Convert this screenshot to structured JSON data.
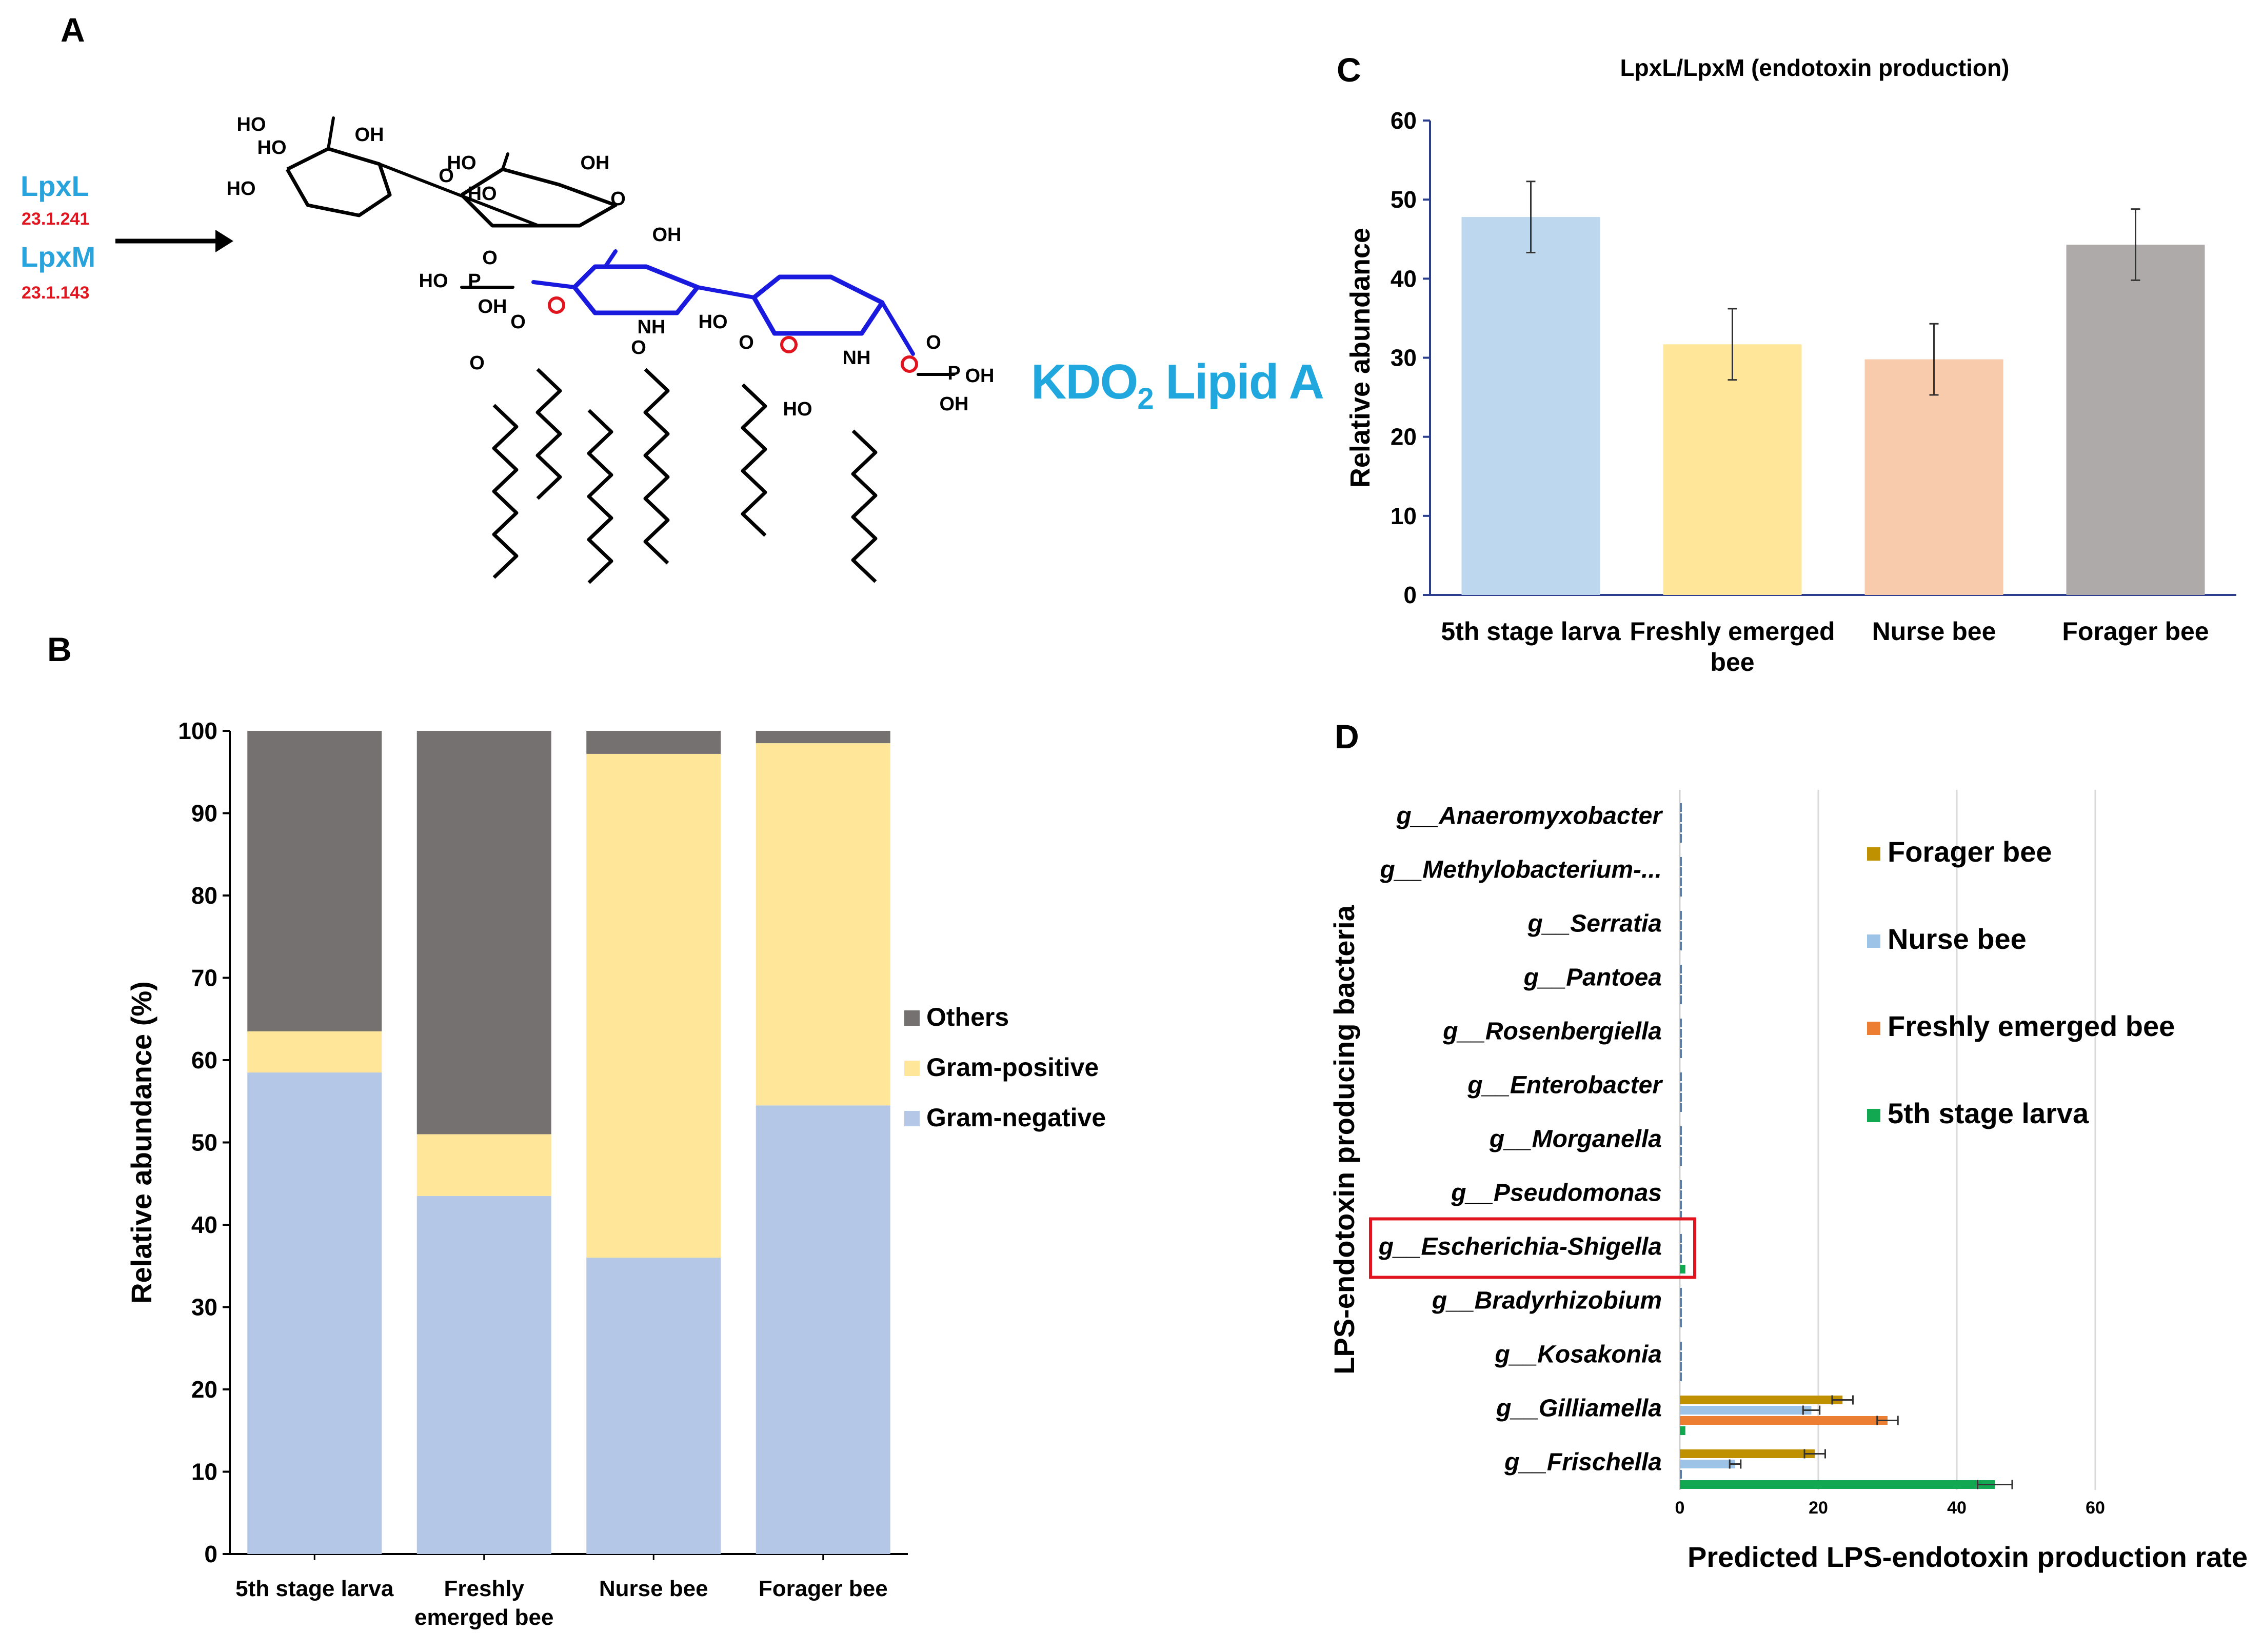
{
  "panels": {
    "a": {
      "letter": "A"
    },
    "b": {
      "letter": "B"
    },
    "c": {
      "letter": "C"
    },
    "d": {
      "letter": "D"
    }
  },
  "panel_a": {
    "enzymes": [
      {
        "name": "LpxL",
        "ec": "23.1.241"
      },
      {
        "name": "LpxM",
        "ec": "23.1.143"
      }
    ],
    "molecule_label": "KDO",
    "molecule_subscript": "2",
    "molecule_suffix": " Lipid A",
    "atom_labels": [
      "HO",
      "OH",
      "HO",
      "HO",
      "HO",
      "OH",
      "HO",
      "O",
      "O",
      "OH",
      "HO",
      "P",
      "O",
      "OH",
      "O",
      "O",
      "NH",
      "O",
      "HO",
      "O",
      "NH",
      "O",
      "P",
      "OH",
      "OH",
      "HO"
    ],
    "colors": {
      "enzyme": "#29a3dc",
      "ec": "#e0151f",
      "backbone": "#1a1adf",
      "oxygen": "#e0151f",
      "molecule_label": "#20a8de"
    }
  },
  "chart_data": [
    {
      "id": "B",
      "type": "bar",
      "stacked": true,
      "categories": [
        "5th stage larva",
        "Freshly emerged bee",
        "Nurse bee",
        "Forager bee"
      ],
      "category_lines": [
        [
          "5th stage larva"
        ],
        [
          "Freshly",
          "emerged bee"
        ],
        [
          "Nurse bee"
        ],
        [
          "Forager bee"
        ]
      ],
      "series": [
        {
          "name": "Gram-negative",
          "color": "#b4c7e7",
          "values": [
            58.5,
            43.5,
            36.0,
            54.5
          ]
        },
        {
          "name": "Gram-positive",
          "color": "#ffe699",
          "values": [
            5.0,
            7.5,
            61.2,
            44.0
          ]
        },
        {
          "name": "Others",
          "color": "#767171",
          "values": [
            36.5,
            49.0,
            2.8,
            1.5
          ]
        }
      ],
      "legend_order": [
        "Others",
        "Gram-positive",
        "Gram-negative"
      ],
      "legend_position": "right",
      "ylabel": "Relative abundance (%)",
      "ylim": [
        0,
        100
      ],
      "yticks": [
        0,
        10,
        20,
        30,
        40,
        50,
        60,
        70,
        80,
        90,
        100
      ]
    },
    {
      "id": "C",
      "type": "bar",
      "title": "LpxL/LpxM (endotoxin production)",
      "categories": [
        "5th stage larva",
        "Freshly emerged bee",
        "Nurse bee",
        "Forager bee"
      ],
      "category_lines": [
        [
          "5th stage larva"
        ],
        [
          "Freshly emerged",
          "bee"
        ],
        [
          "Nurse bee"
        ],
        [
          "Forager bee"
        ]
      ],
      "values": [
        47.8,
        31.7,
        29.8,
        44.3
      ],
      "errors": [
        4.5,
        4.5,
        4.5,
        4.5
      ],
      "colors": [
        "#bdd7ee",
        "#ffe699",
        "#f8cbad",
        "#aeaaaa"
      ],
      "ylabel": "Relative abundance",
      "ylim": [
        0,
        60
      ],
      "yticks": [
        0,
        10,
        20,
        30,
        40,
        50,
        60
      ]
    },
    {
      "id": "D",
      "type": "bar",
      "orientation": "horizontal",
      "genera": [
        "g__Anaeromyxobacter",
        "g__Methylobacterium-...",
        "g__Serratia",
        "g__Pantoea",
        "g__Rosenbergiella",
        "g__Enterobacter",
        "g__Morganella",
        "g__Pseudomonas",
        "g__Escherichia-Shigella",
        "g__Bradyrhizobium",
        "g__Kosakonia",
        "g__Gilliamella",
        "g__Frischella"
      ],
      "highlighted": "g__Escherichia-Shigella",
      "highlight_color": "#e0151f",
      "series": [
        {
          "name": "Forager bee",
          "color": "#bf9000",
          "values": [
            0,
            0,
            0,
            0,
            0,
            0,
            0,
            0,
            0,
            0,
            0,
            23.5,
            19.5
          ],
          "errors": [
            0,
            0,
            0,
            0,
            0,
            0,
            0,
            0,
            0,
            0,
            0,
            1.5,
            1.5
          ]
        },
        {
          "name": "Nurse bee",
          "color": "#9dc3e6",
          "values": [
            0,
            0,
            0,
            0,
            0,
            0,
            0,
            0,
            0,
            0,
            0,
            19.0,
            8.0
          ],
          "errors": [
            0,
            0,
            0,
            0,
            0,
            0,
            0,
            0,
            0,
            0,
            0,
            1.2,
            0.8
          ]
        },
        {
          "name": "Freshly emerged bee",
          "color": "#ed7d31",
          "values": [
            0,
            0,
            0,
            0,
            0,
            0,
            0,
            0,
            0,
            0,
            0,
            30.0,
            0
          ],
          "errors": [
            0,
            0,
            0,
            0,
            0,
            0,
            0,
            0,
            0,
            0,
            0,
            1.5,
            0
          ]
        },
        {
          "name": "5th stage larva",
          "color": "#12a851",
          "values": [
            0,
            0,
            0,
            0,
            0,
            0,
            0,
            0,
            0.8,
            0,
            0,
            0.8,
            45.5
          ],
          "errors": [
            0,
            0,
            0,
            0,
            0,
            0,
            0,
            0,
            0,
            0,
            0,
            0,
            2.5
          ]
        }
      ],
      "legend_position": "right",
      "xlabel": "Predicted LPS-endotoxin production rate",
      "ylabel": "LPS-endotoxin producing bacteria",
      "xlim": [
        0,
        80
      ],
      "xticks": [
        0,
        20,
        40,
        60
      ],
      "grid": true
    }
  ]
}
